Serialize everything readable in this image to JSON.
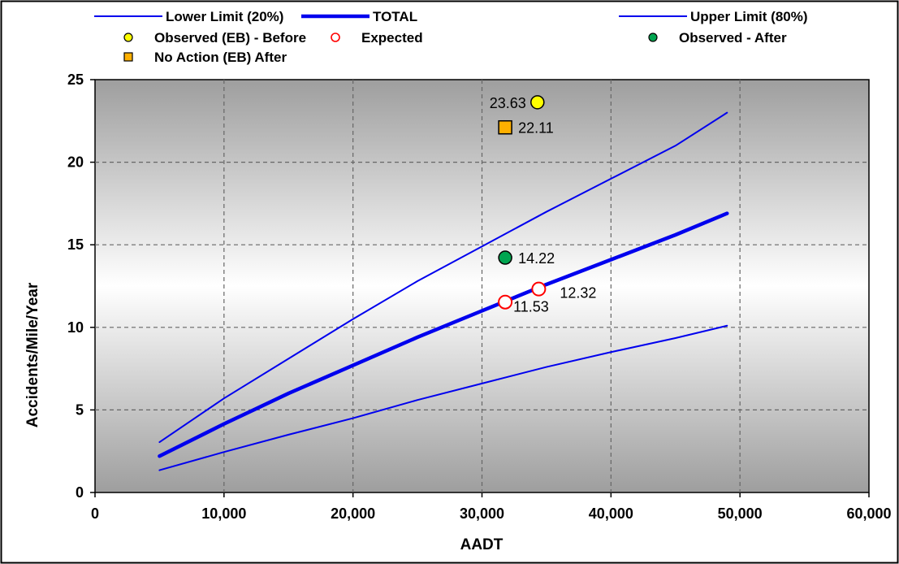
{
  "chart_data": {
    "type": "line",
    "xlabel": "AADT",
    "ylabel": "Accidents/Mile/Year",
    "xlim": [
      0,
      60000
    ],
    "ylim": [
      0,
      25
    ],
    "xticks": [
      0,
      10000,
      20000,
      30000,
      40000,
      50000,
      60000
    ],
    "xtick_labels": [
      "0",
      "10,000",
      "20,000",
      "30,000",
      "40,000",
      "50,000",
      "60,000"
    ],
    "yticks": [
      0,
      5,
      10,
      15,
      20,
      25
    ],
    "ytick_labels": [
      "0",
      "5",
      "10",
      "15",
      "20",
      "25"
    ],
    "grid": true,
    "legend_position": "top",
    "series": [
      {
        "name": "Lower Limit (20%)",
        "kind": "line",
        "color": "#0000ee",
        "x": [
          5000,
          10000,
          15000,
          20000,
          25000,
          30000,
          35000,
          40000,
          45000,
          49000
        ],
        "y": [
          1.35,
          2.45,
          3.5,
          4.5,
          5.6,
          6.6,
          7.6,
          8.5,
          9.35,
          10.1
        ]
      },
      {
        "name": "TOTAL",
        "kind": "line",
        "color": "#0000ee",
        "x": [
          5000,
          10000,
          15000,
          20000,
          25000,
          30000,
          35000,
          40000,
          45000,
          49000
        ],
        "y": [
          2.2,
          4.15,
          6.0,
          7.7,
          9.4,
          11.0,
          12.6,
          14.1,
          15.6,
          16.9
        ]
      },
      {
        "name": "Upper Limit (80%)",
        "kind": "line",
        "color": "#0000ee",
        "x": [
          5000,
          10000,
          15000,
          20000,
          25000,
          30000,
          35000,
          40000,
          45000,
          49000
        ],
        "y": [
          3.05,
          5.7,
          8.1,
          10.5,
          12.8,
          14.9,
          17.0,
          19.0,
          21.0,
          23.0
        ]
      },
      {
        "name": "Observed (EB) - Before",
        "kind": "marker",
        "marker": "circle",
        "fill": "#ffff00",
        "stroke": "#000000",
        "x": [
          34300
        ],
        "y": [
          23.63
        ],
        "labels": [
          "23.63"
        ],
        "label_side": "left"
      },
      {
        "name": "Expected",
        "kind": "marker",
        "marker": "circle",
        "fill": "#ffffff",
        "stroke": "#ff0000",
        "x": [
          31800,
          34400
        ],
        "y": [
          11.53,
          12.32
        ],
        "labels": [
          "11.53",
          "12.32"
        ],
        "label_side": "right"
      },
      {
        "name": "Observed - After",
        "kind": "marker",
        "marker": "circle",
        "fill": "#00a550",
        "stroke": "#000000",
        "x": [
          31800
        ],
        "y": [
          14.22
        ],
        "labels": [
          "14.22"
        ],
        "label_side": "right"
      },
      {
        "name": "No Action (EB) After",
        "kind": "marker",
        "marker": "square",
        "fill": "#ffb000",
        "stroke": "#000000",
        "x": [
          31800
        ],
        "y": [
          22.11
        ],
        "labels": [
          "22.11"
        ],
        "label_side": "right"
      }
    ]
  }
}
